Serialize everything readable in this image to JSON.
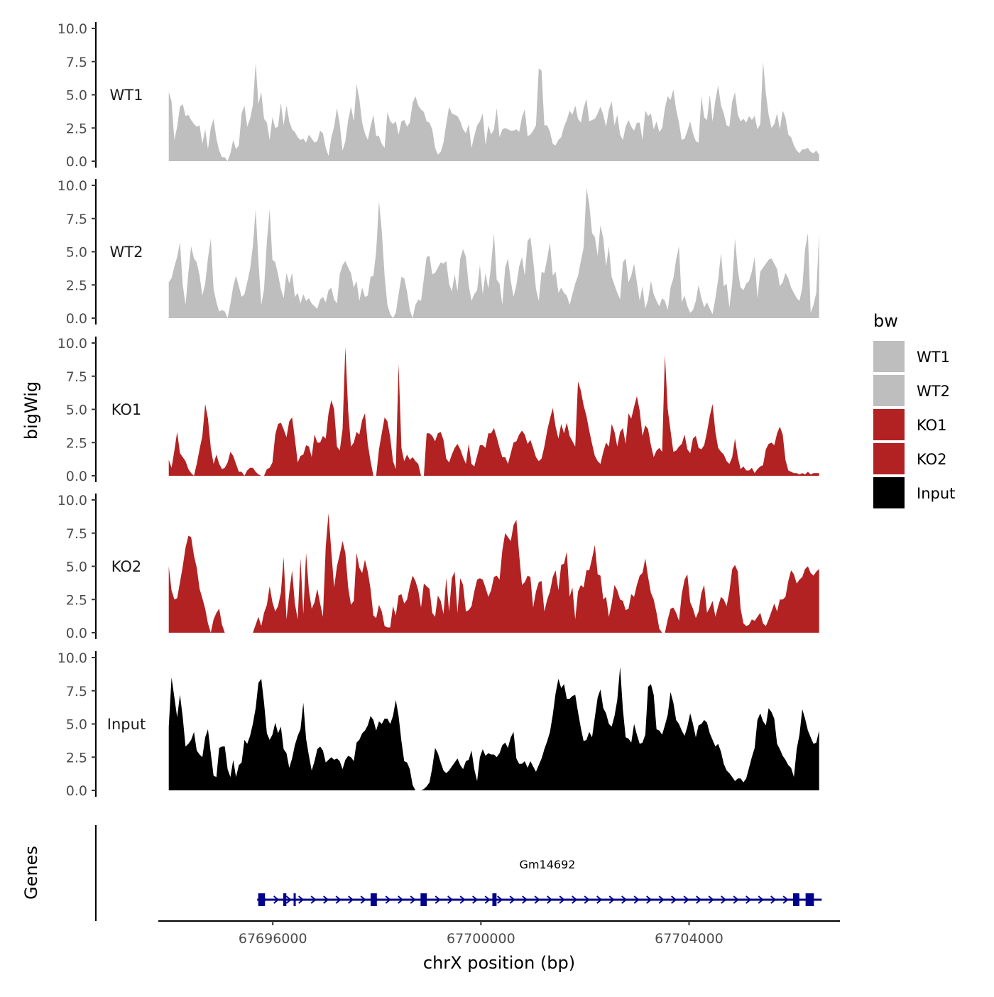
{
  "chart_data": {
    "type": "area",
    "title": "",
    "ylabel": "bigWig",
    "xlabel": "chrX position (bp)",
    "genes_label": "Genes",
    "ylim": [
      0,
      10
    ],
    "xlim": [
      67693800,
      67706900
    ],
    "y_ticks": [
      "0.0",
      "2.5",
      "5.0",
      "7.5",
      "10.0"
    ],
    "x_ticks": [
      {
        "value": 67696000,
        "label": "67696000"
      },
      {
        "value": 67700000,
        "label": "67700000"
      },
      {
        "value": 67704000,
        "label": "67704000"
      }
    ],
    "data_x_start": 67694000,
    "data_x_end": 67706500,
    "legend": {
      "title": "bw",
      "items": [
        {
          "label": "WT1",
          "color": "#bebebe"
        },
        {
          "label": "WT2",
          "color": "#bebebe"
        },
        {
          "label": "KO1",
          "color": "#b22222"
        },
        {
          "label": "KO2",
          "color": "#b22222"
        },
        {
          "label": "Input",
          "color": "#000000"
        }
      ]
    },
    "tracks": [
      {
        "name": "WT1",
        "color": "#bebebe",
        "values": [
          5.2,
          4.5,
          1.6,
          2.6,
          4.1,
          4.3,
          3.4,
          3.5,
          3.1,
          2.8,
          2.6,
          2.7,
          1.3,
          2.4,
          0.9,
          2.5,
          3.2,
          1.7,
          0.8,
          0.3,
          0.3,
          0.0,
          0.6,
          1.6,
          0.9,
          1.2,
          3.6,
          4.2,
          2.6,
          3.2,
          4.2,
          7.4,
          4.3,
          5.2,
          3.2,
          2.9,
          1.6,
          3.3,
          2.5,
          2.6,
          4.4,
          2.7,
          4.2,
          3.0,
          2.4,
          2.2,
          1.8,
          1.6,
          1.7,
          1.4,
          2.0,
          1.7,
          1.4,
          1.5,
          2.3,
          2.1,
          1.0,
          0.4,
          1.8,
          2.6,
          4.0,
          2.8,
          0.8,
          1.5,
          3.1,
          4.1,
          3.0,
          5.8,
          4.7,
          2.9,
          2.1,
          1.6,
          2.6,
          3.5,
          1.9,
          1.9,
          1.3,
          1.0,
          3.7,
          3.0,
          2.8,
          3.0,
          2.0,
          3.0,
          3.1,
          2.6,
          2.9,
          4.4,
          4.9,
          4.2,
          3.9,
          3.7,
          3.0,
          2.9,
          2.4,
          1.0,
          0.5,
          0.7,
          1.4,
          2.8,
          4.1,
          3.6,
          3.5,
          3.4,
          3.0,
          2.4,
          2.1,
          2.8,
          1.0,
          1.9,
          2.7,
          3.0,
          3.6,
          1.2,
          2.7,
          2.0,
          2.4,
          4.0,
          1.8,
          2.4,
          2.5,
          2.4,
          2.3,
          2.3,
          2.4,
          2.2,
          3.3,
          3.9,
          1.9,
          2.0,
          2.3,
          2.7,
          7.0,
          6.8,
          2.7,
          2.7,
          2.2,
          1.3,
          1.2,
          1.6,
          1.8,
          2.6,
          3.1,
          3.8,
          3.5,
          4.2,
          3.2,
          2.9,
          4.0,
          4.7,
          3.0,
          3.1,
          3.2,
          3.6,
          4.1,
          3.5,
          2.6,
          3.9,
          4.5,
          2.7,
          3.5,
          2.0,
          1.6,
          2.6,
          3.1,
          2.6,
          2.3,
          2.9,
          2.9,
          1.6,
          3.8,
          3.4,
          3.6,
          2.4,
          3.0,
          2.2,
          2.5,
          4.0,
          4.9,
          4.6,
          5.4,
          3.9,
          2.9,
          1.6,
          1.7,
          2.3,
          3.0,
          2.1,
          1.5,
          1.4,
          4.9,
          3.3,
          3.1,
          5.0,
          3.0,
          4.6,
          5.7,
          4.2,
          3.6,
          2.7,
          2.6,
          4.5,
          5.2,
          3.5,
          3.0,
          3.2,
          2.9,
          3.4,
          3.1,
          3.4,
          2.4,
          2.8,
          7.5,
          5.1,
          3.5,
          2.5,
          2.8,
          3.6,
          2.4,
          3.8,
          3.3,
          2.0,
          1.8,
          1.2,
          0.8,
          0.6,
          0.9,
          0.9,
          1.0,
          0.7,
          0.6,
          0.8,
          0.5
        ]
      },
      {
        "name": "WT2",
        "color": "#bebebe",
        "values": [
          2.7,
          3.0,
          3.9,
          4.6,
          5.7,
          2.5,
          1.0,
          3.4,
          5.4,
          4.5,
          4.2,
          3.2,
          1.7,
          2.6,
          4.5,
          6.0,
          2.2,
          1.2,
          0.5,
          0.6,
          0.5,
          0.0,
          1.1,
          2.4,
          3.2,
          2.4,
          1.6,
          1.8,
          2.7,
          3.7,
          5.4,
          8.2,
          4.3,
          1.0,
          2.2,
          5.8,
          8.2,
          4.4,
          4.2,
          3.3,
          2.2,
          1.5,
          3.4,
          2.6,
          3.4,
          1.6,
          1.9,
          1.1,
          1.8,
          1.3,
          1.5,
          1.1,
          0.9,
          0.7,
          1.4,
          1.6,
          1.2,
          2.1,
          2.3,
          1.4,
          1.1,
          3.3,
          4.0,
          4.3,
          3.8,
          3.4,
          2.3,
          2.8,
          1.3,
          2.3,
          1.6,
          1.7,
          3.1,
          3.2,
          5.0,
          8.8,
          6.6,
          3.2,
          1.0,
          0.3,
          0.0,
          0.4,
          1.8,
          3.1,
          3.0,
          2.0,
          0.6,
          0.0,
          1.0,
          1.4,
          1.3,
          3.0,
          4.6,
          4.7,
          3.3,
          3.4,
          3.8,
          4.2,
          4.1,
          4.3,
          2.6,
          2.0,
          3.3,
          2.0,
          4.5,
          5.2,
          4.6,
          2.5,
          1.3,
          1.8,
          2.1,
          4.0,
          1.8,
          3.4,
          2.2,
          4.0,
          6.4,
          2.9,
          2.6,
          1.0,
          3.8,
          4.5,
          2.8,
          1.6,
          2.5,
          3.9,
          4.6,
          3.2,
          5.8,
          6.1,
          4.4,
          2.2,
          1.3,
          3.5,
          3.4,
          4.5,
          5.7,
          3.2,
          3.5,
          1.9,
          2.3,
          1.9,
          1.7,
          1.0,
          1.8,
          2.6,
          3.2,
          4.3,
          5.3,
          9.8,
          8.6,
          6.4,
          6.1,
          4.7,
          7.0,
          6.0,
          3.9,
          5.4,
          3.1,
          2.5,
          1.9,
          1.4,
          4.2,
          4.5,
          2.7,
          3.2,
          4.1,
          2.7,
          1.3,
          2.4,
          0.7,
          1.4,
          2.8,
          1.8,
          1.3,
          0.9,
          1.5,
          1.3,
          0.6,
          2.3,
          3.0,
          4.4,
          5.4,
          1.2,
          1.7,
          0.9,
          0.4,
          0.6,
          1.3,
          2.5,
          1.5,
          0.8,
          1.2,
          0.7,
          0.3,
          1.5,
          2.9,
          4.9,
          2.4,
          2.6,
          0.8,
          2.6,
          6.0,
          3.6,
          2.3,
          2.1,
          2.6,
          2.8,
          3.5,
          4.6,
          1.5,
          3.5,
          3.8,
          4.1,
          4.4,
          4.5,
          4.1,
          3.7,
          2.4,
          2.7,
          3.4,
          3.0,
          2.3,
          1.9,
          1.5,
          1.3,
          2.3,
          5.2,
          6.4,
          0.4,
          1.0,
          1.9,
          6.4
        ]
      },
      {
        "name": "KO1",
        "color": "#b22222",
        "values": [
          1.2,
          0.6,
          1.9,
          3.3,
          1.7,
          1.4,
          1.1,
          0.5,
          0.2,
          0.0,
          0.9,
          2.0,
          3.0,
          5.4,
          4.3,
          2.1,
          0.9,
          1.6,
          0.9,
          0.5,
          0.6,
          1.0,
          1.8,
          1.5,
          0.9,
          0.3,
          0.3,
          0.0,
          0.4,
          0.6,
          0.6,
          0.3,
          0.1,
          0.0,
          0.0,
          0.5,
          0.6,
          1.0,
          3.1,
          3.9,
          4.0,
          3.5,
          2.9,
          4.1,
          4.4,
          2.8,
          1.0,
          1.5,
          1.6,
          2.3,
          2.2,
          1.4,
          3.1,
          2.5,
          2.5,
          3.0,
          2.8,
          4.7,
          5.7,
          5.0,
          2.2,
          1.9,
          3.5,
          9.7,
          4.9,
          2.2,
          2.5,
          3.3,
          3.1,
          4.2,
          4.7,
          2.4,
          1.1,
          0.0,
          0.0,
          2.0,
          3.2,
          4.4,
          4.1,
          2.9,
          1.1,
          0.5,
          8.4,
          2.1,
          1.1,
          1.6,
          1.2,
          1.4,
          1.1,
          0.9,
          0.0,
          0.0,
          3.2,
          3.2,
          3.0,
          2.6,
          3.2,
          3.3,
          2.7,
          1.3,
          1.0,
          1.6,
          2.1,
          2.4,
          2.0,
          1.4,
          0.9,
          2.4,
          0.9,
          0.7,
          1.5,
          2.3,
          2.3,
          2.1,
          3.2,
          3.2,
          3.6,
          2.9,
          2.1,
          1.4,
          1.4,
          0.9,
          1.7,
          2.5,
          2.6,
          3.1,
          3.4,
          3.1,
          2.4,
          2.7,
          2.1,
          1.4,
          1.1,
          1.3,
          2.2,
          3.4,
          4.3,
          5.1,
          3.7,
          2.8,
          3.9,
          3.2,
          4.0,
          3.0,
          2.6,
          2.2,
          7.1,
          6.4,
          5.3,
          4.5,
          3.4,
          2.4,
          1.5,
          1.1,
          0.9,
          1.8,
          2.5,
          2.2,
          3.9,
          3.3,
          2.2,
          3.3,
          3.6,
          2.4,
          4.7,
          4.3,
          5.2,
          6.0,
          4.9,
          3.0,
          3.8,
          3.5,
          2.3,
          1.4,
          1.9,
          2.1,
          1.8,
          9.1,
          5.0,
          3.4,
          1.8,
          1.9,
          2.2,
          2.4,
          3.1,
          2.0,
          1.7,
          2.8,
          3.0,
          2.1,
          2.0,
          2.3,
          3.3,
          4.5,
          5.4,
          3.3,
          2.1,
          1.8,
          1.6,
          1.1,
          0.9,
          1.4,
          2.8,
          1.4,
          0.5,
          0.7,
          0.4,
          0.4,
          0.6,
          0.2,
          0.5,
          0.7,
          0.8,
          2.0,
          2.4,
          2.5,
          2.3,
          3.2,
          3.7,
          3.1,
          1.2,
          0.4,
          0.3,
          0.2,
          0.2,
          0.1,
          0.2,
          0.1,
          0.3,
          0.1,
          0.2,
          0.2,
          0.2
        ]
      },
      {
        "name": "KO2",
        "color": "#b22222",
        "values": [
          5.0,
          3.2,
          2.5,
          2.6,
          3.8,
          5.0,
          6.4,
          7.3,
          7.2,
          5.8,
          4.9,
          3.3,
          2.6,
          1.8,
          0.7,
          0.0,
          1.0,
          1.5,
          1.8,
          0.6,
          0.0,
          0.0,
          0.0,
          0.0,
          0.0,
          0.0,
          0.0,
          0.0,
          0.0,
          0.0,
          0.0,
          0.6,
          1.2,
          0.5,
          1.5,
          2.1,
          3.5,
          2.3,
          1.6,
          2.0,
          3.0,
          5.7,
          1.0,
          3.0,
          4.7,
          2.2,
          1.0,
          5.6,
          1.4,
          6.0,
          3.2,
          1.8,
          2.3,
          3.3,
          2.2,
          1.2,
          6.5,
          9.0,
          6.1,
          3.4,
          5.0,
          5.9,
          6.9,
          6.0,
          3.4,
          2.1,
          2.4,
          6.0,
          4.9,
          4.5,
          5.5,
          4.6,
          3.3,
          1.3,
          1.1,
          2.1,
          1.6,
          0.5,
          0.4,
          0.4,
          2.0,
          1.3,
          2.8,
          2.9,
          2.2,
          2.5,
          3.5,
          4.3,
          3.9,
          3.2,
          1.9,
          3.7,
          3.5,
          3.3,
          1.5,
          1.2,
          2.8,
          2.4,
          1.4,
          4.1,
          1.6,
          4.1,
          4.6,
          1.5,
          4.1,
          3.6,
          1.6,
          1.7,
          2.0,
          3.1,
          4.0,
          4.1,
          4.0,
          3.4,
          2.7,
          3.2,
          4.2,
          4.3,
          4.0,
          6.2,
          7.5,
          7.2,
          6.9,
          8.1,
          8.5,
          5.9,
          3.6,
          3.8,
          4.3,
          4.2,
          1.9,
          3.1,
          3.8,
          3.9,
          1.6,
          2.5,
          3.1,
          4.2,
          4.7,
          3.2,
          5.1,
          5.2,
          6.1,
          2.7,
          3.4,
          1.0,
          3.1,
          3.6,
          3.4,
          4.7,
          4.7,
          5.6,
          6.6,
          4.4,
          4.3,
          2.5,
          2.7,
          1.2,
          2.2,
          3.6,
          3.2,
          2.5,
          2.4,
          1.7,
          1.8,
          2.9,
          2.7,
          3.6,
          4.3,
          4.5,
          5.6,
          4.2,
          3.0,
          2.5,
          1.5,
          0.3,
          0.0,
          0.0,
          1.0,
          1.8,
          1.9,
          1.5,
          0.9,
          2.9,
          4.0,
          4.4,
          2.3,
          1.8,
          1.1,
          1.6,
          3.0,
          3.6,
          1.5,
          1.9,
          2.4,
          1.2,
          2.0,
          2.7,
          2.5,
          2.0,
          3.1,
          4.8,
          5.1,
          4.6,
          1.8,
          0.7,
          0.5,
          0.6,
          1.0,
          0.9,
          1.2,
          1.5,
          0.7,
          0.5,
          1.0,
          1.6,
          2.2,
          1.6,
          2.5,
          2.5,
          2.7,
          3.9,
          4.7,
          4.4,
          3.7,
          4.0,
          4.2,
          4.8,
          5.0,
          4.5,
          4.3,
          4.6,
          4.8
        ]
      },
      {
        "name": "Input",
        "color": "#000000",
        "values": [
          4.8,
          8.5,
          7.0,
          5.5,
          7.2,
          5.5,
          3.3,
          3.5,
          3.8,
          4.4,
          3.0,
          2.7,
          2.5,
          4.0,
          4.6,
          2.8,
          1.1,
          1.0,
          3.2,
          3.3,
          3.3,
          1.6,
          1.0,
          2.3,
          1.0,
          1.9,
          2.1,
          3.8,
          3.5,
          4.1,
          5.0,
          6.2,
          8.1,
          8.4,
          6.6,
          4.3,
          3.8,
          4.2,
          5.1,
          4.3,
          4.8,
          3.1,
          2.8,
          1.7,
          2.4,
          3.4,
          4.1,
          4.6,
          6.6,
          3.9,
          2.6,
          1.5,
          2.2,
          3.1,
          3.3,
          3.0,
          2.1,
          2.3,
          2.5,
          2.3,
          2.4,
          2.2,
          1.6,
          2.3,
          2.6,
          2.5,
          2.2,
          3.6,
          3.8,
          4.3,
          4.5,
          4.9,
          5.6,
          5.3,
          4.5,
          5.2,
          5.0,
          5.4,
          5.4,
          5.0,
          5.6,
          6.8,
          5.6,
          3.7,
          2.2,
          2.1,
          1.6,
          0.4,
          0.0,
          0.0,
          0.0,
          0.1,
          0.3,
          0.6,
          1.7,
          3.2,
          2.8,
          2.1,
          1.5,
          1.3,
          1.5,
          1.8,
          2.1,
          2.4,
          1.9,
          1.6,
          2.2,
          2.3,
          3.0,
          1.6,
          0.7,
          2.5,
          3.1,
          2.6,
          2.8,
          2.7,
          2.7,
          2.5,
          2.8,
          3.4,
          3.6,
          3.2,
          4.0,
          4.4,
          2.4,
          2.0,
          2.0,
          2.2,
          1.7,
          2.2,
          1.8,
          1.4,
          1.9,
          2.4,
          3.1,
          3.7,
          4.4,
          5.7,
          7.3,
          8.4,
          7.7,
          8.0,
          6.9,
          6.9,
          7.1,
          7.2,
          5.9,
          4.7,
          3.7,
          3.8,
          4.4,
          4.0,
          5.5,
          7.0,
          7.6,
          6.2,
          5.8,
          5.0,
          4.8,
          5.6,
          6.8,
          9.3,
          6.1,
          4.0,
          3.9,
          3.6,
          5.0,
          4.2,
          3.5,
          3.6,
          4.2,
          7.8,
          8.0,
          7.2,
          4.6,
          4.5,
          4.2,
          4.9,
          5.7,
          7.4,
          6.6,
          5.3,
          5.0,
          4.5,
          4.1,
          4.8,
          5.8,
          5.0,
          4.0,
          4.9,
          5.0,
          5.3,
          5.1,
          4.3,
          3.8,
          3.3,
          3.5,
          2.9,
          2.0,
          1.5,
          1.3,
          1.0,
          0.7,
          0.9,
          0.9,
          0.6,
          0.9,
          1.7,
          2.5,
          3.2,
          5.3,
          5.8,
          5.2,
          4.9,
          6.2,
          5.9,
          5.4,
          3.5,
          3.1,
          2.6,
          2.3,
          1.9,
          1.7,
          1.0,
          3.1,
          4.2,
          6.1,
          5.4,
          4.5,
          4.0,
          3.5,
          3.6,
          4.5
        ]
      }
    ],
    "gene": {
      "name": "Gm14692",
      "start": 67695700,
      "end": 67706550,
      "strand": "+",
      "color": "#00008b",
      "exons": [
        {
          "start": 67695720,
          "end": 67695850
        },
        {
          "start": 67696200,
          "end": 67696260
        },
        {
          "start": 67696400,
          "end": 67696430
        },
        {
          "start": 67697880,
          "end": 67698000
        },
        {
          "start": 67698840,
          "end": 67698960
        },
        {
          "start": 67700220,
          "end": 67700300
        },
        {
          "start": 67706000,
          "end": 67706120
        },
        {
          "start": 67706240,
          "end": 67706400
        }
      ]
    }
  }
}
